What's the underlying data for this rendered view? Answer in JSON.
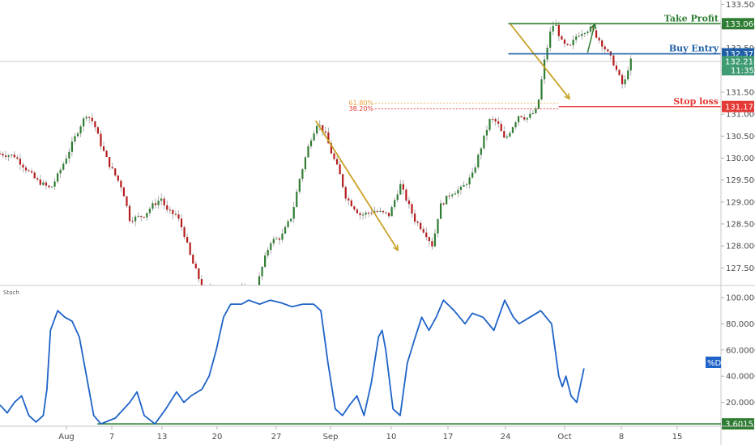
{
  "chart_data": [
    {
      "type": "candlestick",
      "title": "",
      "xlabel": "",
      "ylabel": "",
      "ylim": [
        127.1,
        133.6
      ],
      "y_ticks": [
        "133.500",
        "133.000",
        "132.500",
        "132.000",
        "131.500",
        "131.000",
        "130.500",
        "130.000",
        "129.500",
        "129.000",
        "128.500",
        "128.000",
        "127.500"
      ],
      "x_ticks": [
        "Aug",
        "7",
        "13",
        "20",
        "27",
        "Sep",
        "10",
        "17",
        "24",
        "Oct",
        "8",
        "15"
      ],
      "grid": false,
      "candle_colors": {
        "up": "#2e7d32",
        "down": "#b71c1c"
      },
      "price_path": [
        {
          "x": 0,
          "y": 130.1
        },
        {
          "x": 0.02,
          "y": 130.05
        },
        {
          "x": 0.05,
          "y": 129.5
        },
        {
          "x": 0.07,
          "y": 129.3
        },
        {
          "x": 0.08,
          "y": 129.6
        },
        {
          "x": 0.09,
          "y": 129.95
        },
        {
          "x": 0.11,
          "y": 130.7
        },
        {
          "x": 0.12,
          "y": 131.0
        },
        {
          "x": 0.13,
          "y": 130.8
        },
        {
          "x": 0.14,
          "y": 130.3
        },
        {
          "x": 0.15,
          "y": 129.9
        },
        {
          "x": 0.17,
          "y": 129.3
        },
        {
          "x": 0.18,
          "y": 128.6
        },
        {
          "x": 0.2,
          "y": 128.7
        },
        {
          "x": 0.21,
          "y": 128.9
        },
        {
          "x": 0.225,
          "y": 129.1
        },
        {
          "x": 0.23,
          "y": 128.8
        },
        {
          "x": 0.245,
          "y": 128.7
        },
        {
          "x": 0.255,
          "y": 128.3
        },
        {
          "x": 0.265,
          "y": 127.7
        },
        {
          "x": 0.275,
          "y": 127.3
        },
        {
          "x": 0.28,
          "y": 127.0
        },
        {
          "x": 0.355,
          "y": 127.0
        },
        {
          "x": 0.365,
          "y": 127.6
        },
        {
          "x": 0.375,
          "y": 128.1
        },
        {
          "x": 0.39,
          "y": 128.2
        },
        {
          "x": 0.405,
          "y": 128.7
        },
        {
          "x": 0.415,
          "y": 129.5
        },
        {
          "x": 0.43,
          "y": 130.4
        },
        {
          "x": 0.44,
          "y": 130.8
        },
        {
          "x": 0.45,
          "y": 130.6
        },
        {
          "x": 0.46,
          "y": 130.1
        },
        {
          "x": 0.47,
          "y": 129.7
        },
        {
          "x": 0.48,
          "y": 129.1
        },
        {
          "x": 0.5,
          "y": 128.7
        },
        {
          "x": 0.52,
          "y": 128.8
        },
        {
          "x": 0.54,
          "y": 128.7
        },
        {
          "x": 0.555,
          "y": 129.4
        },
        {
          "x": 0.565,
          "y": 129.0
        },
        {
          "x": 0.575,
          "y": 128.6
        },
        {
          "x": 0.59,
          "y": 128.3
        },
        {
          "x": 0.6,
          "y": 128.0
        },
        {
          "x": 0.61,
          "y": 128.9
        },
        {
          "x": 0.625,
          "y": 129.2
        },
        {
          "x": 0.64,
          "y": 129.3
        },
        {
          "x": 0.655,
          "y": 129.6
        },
        {
          "x": 0.67,
          "y": 130.4
        },
        {
          "x": 0.68,
          "y": 130.9
        },
        {
          "x": 0.69,
          "y": 130.8
        },
        {
          "x": 0.7,
          "y": 130.4
        },
        {
          "x": 0.71,
          "y": 130.7
        },
        {
          "x": 0.72,
          "y": 131.0
        },
        {
          "x": 0.73,
          "y": 130.9
        },
        {
          "x": 0.745,
          "y": 131.1
        },
        {
          "x": 0.755,
          "y": 132.2
        },
        {
          "x": 0.765,
          "y": 133.0
        },
        {
          "x": 0.77,
          "y": 133.06
        },
        {
          "x": 0.78,
          "y": 132.6
        },
        {
          "x": 0.79,
          "y": 132.5
        },
        {
          "x": 0.8,
          "y": 132.8
        },
        {
          "x": 0.81,
          "y": 132.9
        },
        {
          "x": 0.82,
          "y": 132.95
        },
        {
          "x": 0.835,
          "y": 132.6
        },
        {
          "x": 0.85,
          "y": 132.2
        },
        {
          "x": 0.86,
          "y": 131.8
        },
        {
          "x": 0.865,
          "y": 131.6
        },
        {
          "x": 0.87,
          "y": 132.0
        },
        {
          "x": 0.875,
          "y": 132.214
        }
      ],
      "levels": [
        {
          "label": "Take Profit",
          "value": 133.06,
          "tag": "133.060",
          "color": "#2e7d32"
        },
        {
          "label": "Buy Entry",
          "value": 132.375,
          "tag": "132.375",
          "color": "#1f5fa8"
        },
        {
          "label": "Stop loss",
          "value": 131.174,
          "tag": "131.174",
          "color": "#e53935"
        }
      ],
      "fib_levels": [
        {
          "label": "61.80%",
          "value": 131.25,
          "color": "#e8a13a"
        },
        {
          "label": "38.20%",
          "value": 131.12,
          "color": "#e53935"
        }
      ],
      "current_price": {
        "value": "132.214",
        "countdown": "11:35",
        "color": "#3f9b72"
      },
      "patterns": [
        {
          "from": {
            "x": 0.438,
            "y": 130.85
          },
          "to": {
            "x": 0.552,
            "y": 127.9
          },
          "color": "#c9a227"
        },
        {
          "from": {
            "x": 0.708,
            "y": 133.05
          },
          "to": {
            "x": 0.79,
            "y": 131.35
          },
          "color": "#c9a227"
        }
      ],
      "target_arrow": {
        "from": {
          "x": 0.815,
          "y": 132.4
        },
        "to": {
          "x": 0.825,
          "y": 133.06
        },
        "color": "#2e7d32"
      }
    },
    {
      "type": "line",
      "title": "Stoch",
      "xlabel": "",
      "ylabel": "",
      "ylim": [
        0,
        100
      ],
      "y_ticks": [
        "100.0000",
        "80.0000",
        "60.0000",
        "40.0000",
        "20.0000"
      ],
      "series": [
        {
          "name": "%D",
          "color": "#1e63c8",
          "points": [
            {
              "x": 0,
              "y": 18
            },
            {
              "x": 0.01,
              "y": 12
            },
            {
              "x": 0.02,
              "y": 20
            },
            {
              "x": 0.03,
              "y": 25
            },
            {
              "x": 0.04,
              "y": 10
            },
            {
              "x": 0.05,
              "y": 5
            },
            {
              "x": 0.06,
              "y": 10
            },
            {
              "x": 0.065,
              "y": 30
            },
            {
              "x": 0.07,
              "y": 75
            },
            {
              "x": 0.08,
              "y": 90
            },
            {
              "x": 0.09,
              "y": 85
            },
            {
              "x": 0.1,
              "y": 82
            },
            {
              "x": 0.11,
              "y": 70
            },
            {
              "x": 0.12,
              "y": 40
            },
            {
              "x": 0.13,
              "y": 10
            },
            {
              "x": 0.14,
              "y": 3.6
            },
            {
              "x": 0.16,
              "y": 8
            },
            {
              "x": 0.18,
              "y": 20
            },
            {
              "x": 0.19,
              "y": 28
            },
            {
              "x": 0.2,
              "y": 10
            },
            {
              "x": 0.215,
              "y": 3.6
            },
            {
              "x": 0.23,
              "y": 15
            },
            {
              "x": 0.245,
              "y": 28
            },
            {
              "x": 0.255,
              "y": 20
            },
            {
              "x": 0.265,
              "y": 25
            },
            {
              "x": 0.28,
              "y": 30
            },
            {
              "x": 0.29,
              "y": 40
            },
            {
              "x": 0.3,
              "y": 60
            },
            {
              "x": 0.31,
              "y": 85
            },
            {
              "x": 0.32,
              "y": 95
            },
            {
              "x": 0.335,
              "y": 95
            },
            {
              "x": 0.345,
              "y": 98
            },
            {
              "x": 0.36,
              "y": 95
            },
            {
              "x": 0.375,
              "y": 98
            },
            {
              "x": 0.39,
              "y": 96
            },
            {
              "x": 0.405,
              "y": 93
            },
            {
              "x": 0.42,
              "y": 95
            },
            {
              "x": 0.435,
              "y": 95
            },
            {
              "x": 0.445,
              "y": 90
            },
            {
              "x": 0.455,
              "y": 50
            },
            {
              "x": 0.465,
              "y": 15
            },
            {
              "x": 0.475,
              "y": 10
            },
            {
              "x": 0.485,
              "y": 18
            },
            {
              "x": 0.495,
              "y": 25
            },
            {
              "x": 0.505,
              "y": 10
            },
            {
              "x": 0.515,
              "y": 35
            },
            {
              "x": 0.525,
              "y": 70
            },
            {
              "x": 0.53,
              "y": 75
            },
            {
              "x": 0.535,
              "y": 60
            },
            {
              "x": 0.545,
              "y": 15
            },
            {
              "x": 0.555,
              "y": 10
            },
            {
              "x": 0.565,
              "y": 50
            },
            {
              "x": 0.575,
              "y": 68
            },
            {
              "x": 0.585,
              "y": 85
            },
            {
              "x": 0.595,
              "y": 75
            },
            {
              "x": 0.605,
              "y": 85
            },
            {
              "x": 0.615,
              "y": 98
            },
            {
              "x": 0.63,
              "y": 90
            },
            {
              "x": 0.645,
              "y": 80
            },
            {
              "x": 0.655,
              "y": 88
            },
            {
              "x": 0.67,
              "y": 85
            },
            {
              "x": 0.685,
              "y": 75
            },
            {
              "x": 0.7,
              "y": 98
            },
            {
              "x": 0.712,
              "y": 85
            },
            {
              "x": 0.72,
              "y": 80
            },
            {
              "x": 0.735,
              "y": 85
            },
            {
              "x": 0.75,
              "y": 90
            },
            {
              "x": 0.765,
              "y": 80
            },
            {
              "x": 0.775,
              "y": 40
            },
            {
              "x": 0.78,
              "y": 32
            },
            {
              "x": 0.785,
              "y": 40
            },
            {
              "x": 0.792,
              "y": 25
            },
            {
              "x": 0.8,
              "y": 20
            },
            {
              "x": 0.81,
              "y": 46
            }
          ]
        }
      ],
      "series_tag": {
        "label": "%D",
        "color": "#1e63c8"
      },
      "support_level": {
        "value": 3.6015,
        "tag": "3.6015",
        "color": "#2e7d32"
      }
    }
  ]
}
